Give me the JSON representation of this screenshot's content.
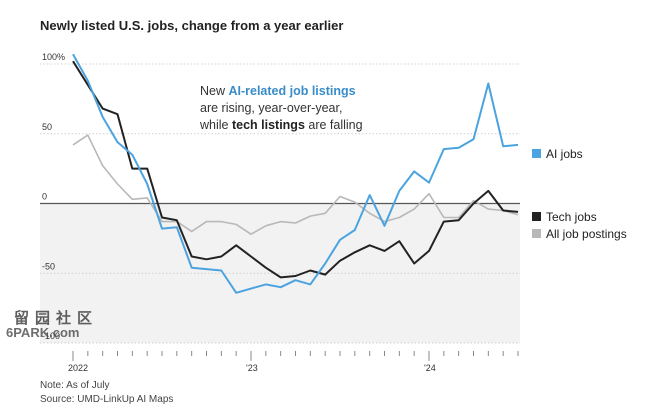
{
  "chart_data": {
    "type": "line",
    "title": "Newly listed U.S. jobs, change from a year earlier",
    "ylim": [
      -100,
      100
    ],
    "yticks": [
      {
        "value": 100,
        "label": "100%"
      },
      {
        "value": 50,
        "label": "50"
      },
      {
        "value": 0,
        "label": "0"
      },
      {
        "value": -50,
        "label": "-50"
      },
      {
        "value": -100,
        "label": "-100"
      }
    ],
    "xticks": [
      {
        "value": 0,
        "label": "2022"
      },
      {
        "value": 12,
        "label": "'23"
      },
      {
        "value": 24,
        "label": "'24"
      }
    ],
    "x_range": [
      0,
      30
    ],
    "grid": true,
    "colors": {
      "ai": "#4ba3e0",
      "tech": "#222222",
      "all": "#b8b8b8",
      "zero_line": "#555555",
      "grid": "#d0d0d0",
      "negative_shade": "#f2f2f2"
    },
    "series": [
      {
        "key": "ai",
        "name": "AI jobs",
        "x": [
          0,
          1,
          2,
          3,
          4,
          5,
          6,
          7,
          8,
          9,
          10,
          11,
          12,
          13,
          14,
          15,
          16,
          17,
          18,
          19,
          20,
          21,
          22,
          23,
          24,
          25,
          26,
          27,
          28,
          29,
          30
        ],
        "values": [
          107,
          88,
          62,
          44,
          35,
          14,
          -18,
          -17,
          -46,
          -47,
          -48,
          -64,
          -61,
          -58,
          -60,
          -55,
          -58,
          -43,
          -26,
          -19,
          6,
          -16,
          9,
          23,
          15,
          39,
          40,
          46,
          86,
          41,
          42
        ]
      },
      {
        "key": "tech",
        "name": "Tech jobs",
        "x": [
          0,
          1,
          2,
          3,
          4,
          5,
          6,
          7,
          8,
          9,
          10,
          11,
          12,
          13,
          14,
          15,
          16,
          17,
          18,
          19,
          20,
          21,
          22,
          23,
          24,
          25,
          26,
          27,
          28,
          29,
          30
        ],
        "values": [
          102,
          85,
          68,
          64,
          25,
          25,
          -10,
          -12,
          -38,
          -40,
          -38,
          -30,
          -38,
          -46,
          -53,
          -52,
          -48,
          -51,
          -41,
          -35,
          -30,
          -34,
          -27,
          -43,
          -34,
          -13,
          -12,
          0,
          9,
          -5,
          -6
        ]
      },
      {
        "key": "all",
        "name": "All job postings",
        "x": [
          0,
          1,
          2,
          3,
          4,
          5,
          6,
          7,
          8,
          9,
          10,
          11,
          12,
          13,
          14,
          15,
          16,
          17,
          18,
          19,
          20,
          21,
          22,
          23,
          24,
          25,
          26,
          27,
          28,
          29,
          30
        ],
        "values": [
          42,
          49,
          27,
          14,
          3,
          4,
          -13,
          -13,
          -20,
          -13,
          -13,
          -15,
          -22,
          -16,
          -13,
          -14,
          -9,
          -7,
          5,
          1,
          -7,
          -13,
          -10,
          -4,
          7,
          -10,
          -10,
          2,
          -4,
          -5,
          -8
        ]
      }
    ],
    "annotation": {
      "line1_prefix": "New ",
      "line1_highlight": "AI-related job listings",
      "line2": "are rising, year-over-year,",
      "line3_prefix": "while ",
      "line3_bold": "tech listings",
      "line3_suffix": " are falling"
    }
  },
  "footnotes": {
    "note": "Note: As of July",
    "source": "Source: UMD-LinkUp AI Maps"
  },
  "watermark": {
    "text": "留园社区",
    "site": "6PARK.com"
  }
}
